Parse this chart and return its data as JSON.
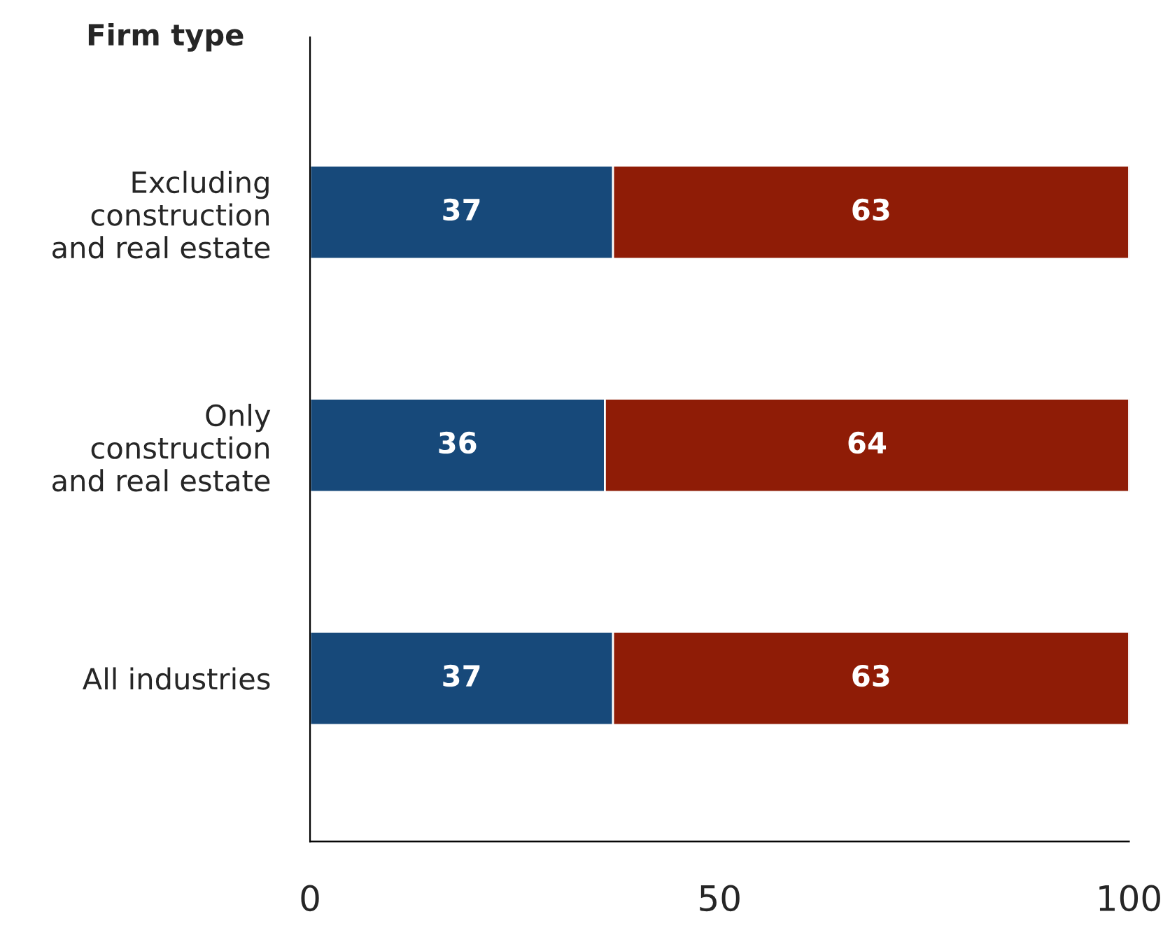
{
  "chart_data": {
    "type": "bar",
    "orientation": "horizontal",
    "stacked": true,
    "ylabel": "Firm type",
    "categories": [
      "Excluding\nconstruction\nand real estate",
      "Only\nconstruction\nand real estate",
      "All industries"
    ],
    "series": [
      {
        "color": "#17497a",
        "values": [
          37,
          36,
          37
        ]
      },
      {
        "color": "#8f1c06",
        "values": [
          63,
          64,
          63
        ]
      }
    ],
    "xlim": [
      0,
      100
    ],
    "xticks": [
      0,
      50,
      100
    ],
    "data_labels": true,
    "grid": false,
    "legend": false
  }
}
